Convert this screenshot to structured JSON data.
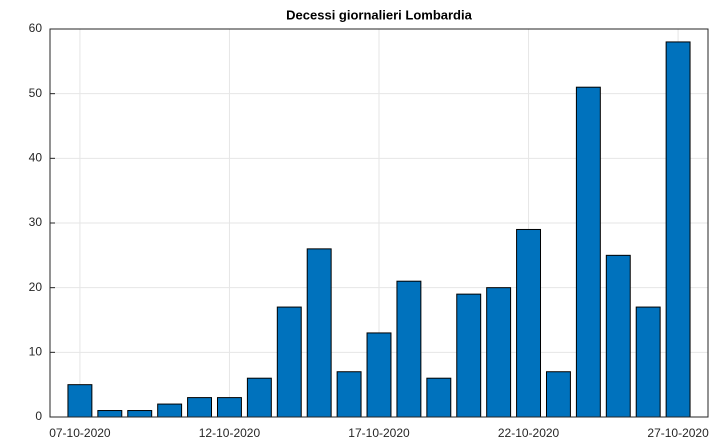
{
  "chart_data": {
    "type": "bar",
    "title": "Decessi giornalieri Lombardia",
    "categories": [
      "07-10-2020",
      null,
      null,
      null,
      null,
      "12-10-2020",
      null,
      null,
      null,
      null,
      "17-10-2020",
      null,
      null,
      null,
      null,
      "22-10-2020",
      null,
      null,
      null,
      null,
      "27-10-2020"
    ],
    "values": [
      5,
      1,
      1,
      2,
      3,
      3,
      6,
      17,
      26,
      7,
      13,
      21,
      6,
      19,
      20,
      29,
      7,
      51,
      25,
      17,
      58
    ],
    "color": "#0072bd",
    "ylim": [
      0,
      60
    ],
    "yticks": [
      0,
      10,
      20,
      30,
      40,
      50,
      60
    ],
    "grid": true
  }
}
